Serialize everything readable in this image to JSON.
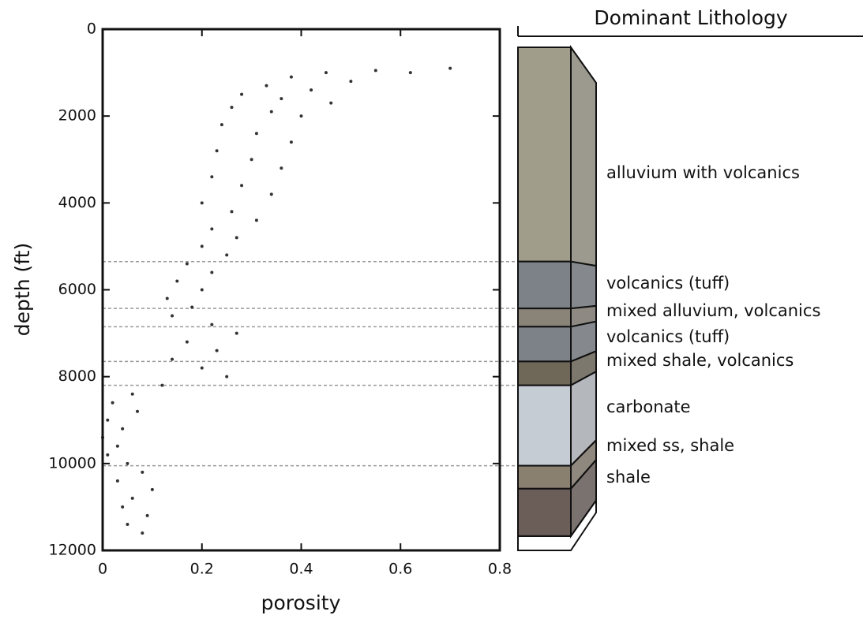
{
  "chart_data": {
    "type": "scatter",
    "xlabel": "porosity",
    "ylabel": "depth (ft)",
    "x": [
      0.7,
      0.55,
      0.45,
      0.62,
      0.38,
      0.5,
      0.33,
      0.42,
      0.28,
      0.36,
      0.46,
      0.26,
      0.34,
      0.4,
      0.24,
      0.31,
      0.38,
      0.23,
      0.3,
      0.36,
      0.22,
      0.28,
      0.34,
      0.2,
      0.26,
      0.31,
      0.22,
      0.27,
      0.2,
      0.25,
      0.17,
      0.22,
      0.15,
      0.2,
      0.13,
      0.18,
      0.14,
      0.22,
      0.27,
      0.17,
      0.23,
      0.14,
      0.2,
      0.25,
      0.12,
      0.06,
      0.02,
      0.07,
      0.01,
      0.04,
      0.0,
      0.03,
      0.01,
      0.05,
      0.08,
      0.03,
      0.1,
      0.06,
      0.04,
      0.09,
      0.05,
      0.08
    ],
    "values": [
      900,
      950,
      1000,
      1000,
      1100,
      1200,
      1300,
      1400,
      1500,
      1600,
      1700,
      1800,
      1900,
      2000,
      2200,
      2400,
      2600,
      2800,
      3000,
      3200,
      3400,
      3600,
      3800,
      4000,
      4200,
      4400,
      4600,
      4800,
      5000,
      5200,
      5400,
      5600,
      5800,
      6000,
      6200,
      6400,
      6600,
      6800,
      7000,
      7200,
      7400,
      7600,
      7800,
      8000,
      8200,
      8400,
      8600,
      8800,
      9000,
      9200,
      9400,
      9600,
      9800,
      10000,
      10200,
      10400,
      10600,
      10800,
      11000,
      11200,
      11400,
      11600
    ],
    "color": "#333333",
    "xlim": [
      0,
      0.8
    ],
    "xticks": [
      0,
      0.2,
      0.4,
      0.6,
      0.8
    ],
    "ylim": [
      0,
      12000
    ],
    "yticks": [
      0,
      2000,
      4000,
      6000,
      8000,
      10000,
      12000
    ],
    "y_inverted": true,
    "boundaries": [
      5350,
      6430,
      6850,
      7650,
      8200,
      10050
    ],
    "lithology_title": "Dominant Lithology",
    "lithology": [
      {
        "label": "alluvium with volcanics",
        "color": "#a09d8b",
        "top": 420,
        "base": 5350
      },
      {
        "label": "volcanics (tuff)",
        "color": "#7c8288",
        "top": 5350,
        "base": 6430
      },
      {
        "label": "mixed alluvium, volcanics",
        "color": "#8a8478",
        "top": 6430,
        "base": 6850
      },
      {
        "label": "volcanics (tuff)",
        "color": "#7c8288",
        "top": 6850,
        "base": 7650
      },
      {
        "label": "mixed shale, volcanics",
        "color": "#6f6757",
        "top": 7650,
        "base": 8200
      },
      {
        "label": "carbonate",
        "color": "#c6ccd4",
        "top": 8200,
        "base": 10050
      },
      {
        "label": "mixed ss, shale",
        "color": "#8a8070",
        "top": 10050,
        "base": 10580
      },
      {
        "label": "shale",
        "color": "#6b5d58",
        "top": 10580,
        "base": 11670
      }
    ]
  }
}
